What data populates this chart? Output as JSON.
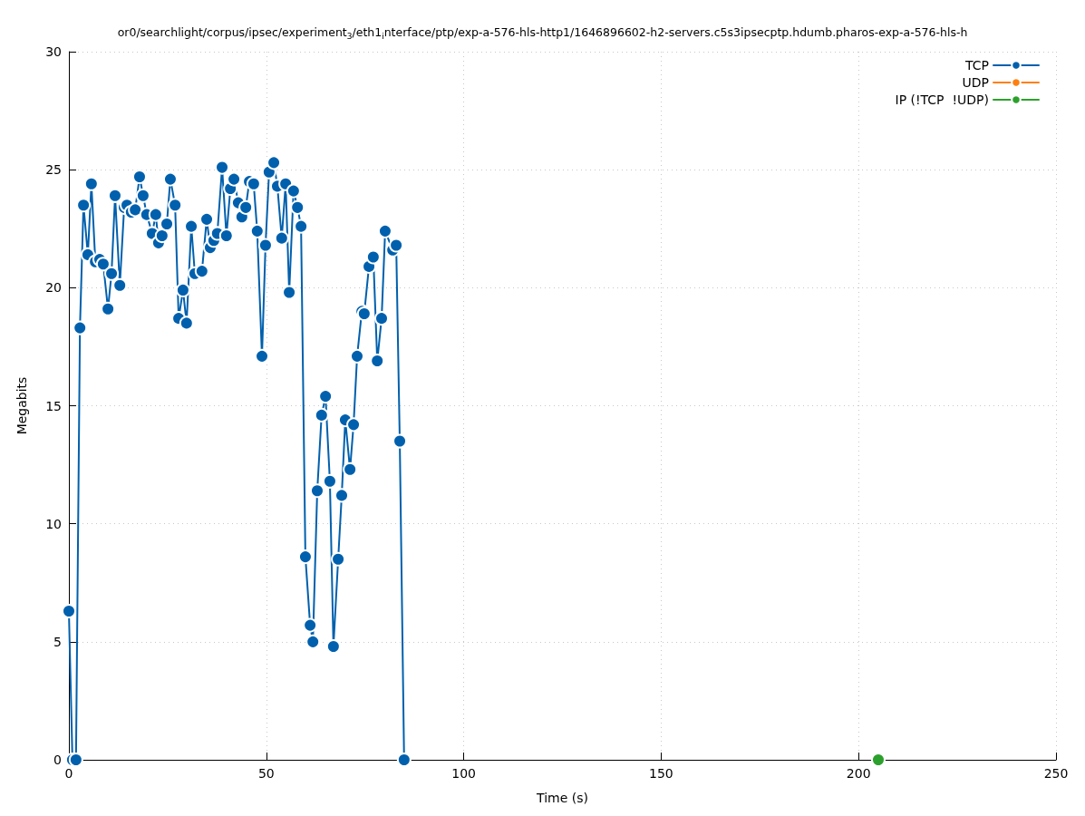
{
  "chart_data": {
    "type": "line",
    "title": "or0/searchlight/corpus/ipsec/experiment$_{3}$/eth1$_{i}$nterface/ptp/exp-a-576-hls-http1/1646896602-h2-servers.c5s3ipsecptp.hdumb.pharos-exp-a-576-hls-h",
    "xlabel": "Time (s)",
    "ylabel": "Megabits",
    "xlim": [
      0,
      250
    ],
    "xticks": [
      0,
      50,
      100,
      150,
      200,
      250
    ],
    "ylim": [
      0,
      30
    ],
    "yticks": [
      0,
      5,
      10,
      15,
      20,
      25,
      30
    ],
    "grid": true,
    "legend": "top right",
    "marker": "circle",
    "line_style": "solid",
    "series": [
      {
        "name": "TCP",
        "color": "#0060ad",
        "x": [
          0,
          0.9,
          1.8,
          2.8,
          3.7,
          4.8,
          5.7,
          6.7,
          7.8,
          8.7,
          9.9,
          10.8,
          11.7,
          12.9,
          14.0,
          14.7,
          15.8,
          16.8,
          17.9,
          18.8,
          19.7,
          21.1,
          22.0,
          22.7,
          23.6,
          24.8,
          25.7,
          26.9,
          27.8,
          28.9,
          29.8,
          31.0,
          31.9,
          33.7,
          34.9,
          35.8,
          36.7,
          37.6,
          38.8,
          39.9,
          40.9,
          41.8,
          42.9,
          43.8,
          44.8,
          45.7,
          46.8,
          47.7,
          48.9,
          49.8,
          50.7,
          51.9,
          52.8,
          53.9,
          54.9,
          55.8,
          56.9,
          57.9,
          58.8,
          59.9,
          61.1,
          61.8,
          62.9,
          64.0,
          65.0,
          66.1,
          67.0,
          68.2,
          69.1,
          70.0,
          71.2,
          72.1,
          73.0,
          74.2,
          74.8,
          76.0,
          77.1,
          78.1,
          79.2,
          80.1,
          82.0,
          82.9,
          83.8,
          84.9
        ],
        "values": [
          6.3,
          0,
          0,
          18.3,
          23.5,
          21.4,
          24.4,
          21.1,
          21.2,
          21.0,
          19.1,
          20.6,
          23.9,
          20.1,
          23.4,
          23.5,
          23.2,
          23.3,
          24.7,
          23.9,
          23.1,
          22.3,
          23.1,
          21.9,
          22.2,
          22.7,
          24.6,
          23.5,
          18.7,
          19.9,
          18.5,
          22.6,
          20.6,
          20.7,
          22.9,
          21.7,
          22.0,
          22.3,
          25.1,
          22.2,
          24.2,
          24.6,
          23.6,
          23.0,
          23.4,
          24.5,
          24.4,
          22.4,
          17.1,
          21.8,
          24.9,
          25.3,
          24.3,
          22.1,
          24.4,
          19.8,
          24.1,
          23.4,
          22.6,
          8.6,
          5.7,
          5.0,
          11.4,
          14.6,
          15.4,
          11.8,
          4.8,
          8.5,
          11.2,
          14.4,
          12.3,
          14.2,
          17.1,
          19.0,
          18.9,
          20.9,
          21.3,
          16.9,
          18.7,
          22.4,
          21.6,
          21.8,
          13.5,
          0
        ]
      },
      {
        "name": "UDP",
        "color": "#ff7f0e"
      },
      {
        "name": "IP (!TCP  !UDP)",
        "color": "#2ca02c",
        "x": [
          205
        ],
        "values": [
          0
        ]
      }
    ]
  }
}
